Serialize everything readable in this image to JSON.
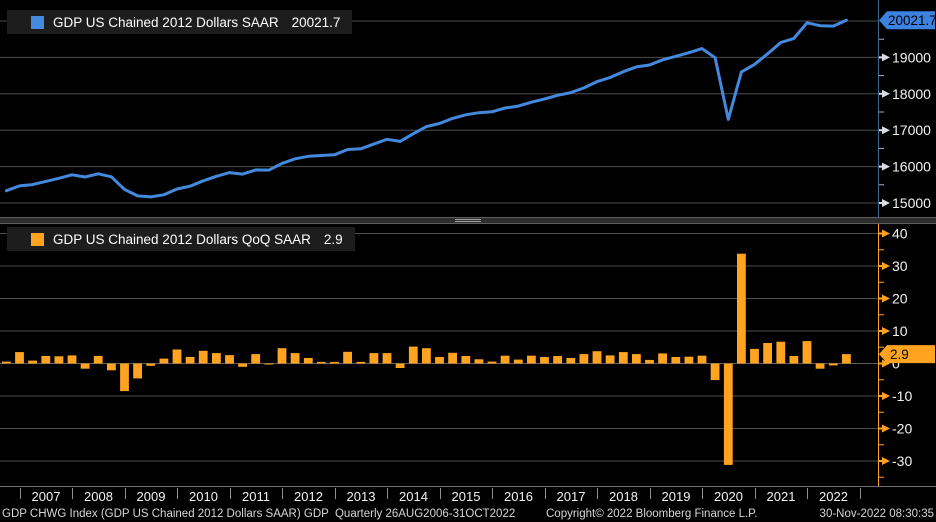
{
  "colors": {
    "background": "#000000",
    "blue": "#4389DE",
    "blue_tag": "#3C82E0",
    "orange": "#FFA320",
    "orange_tag": "#FFA320",
    "grid": "#4d4d4d",
    "zero_line": "#5c5c5c",
    "axis_line_top": "#3E6594",
    "axis_text": "#f2f2f2",
    "tag_text": "#000000"
  },
  "top_legend": {
    "swatch": "blue-square",
    "label": "GDP US Chained 2012 Dollars SAAR",
    "value": "20021.7"
  },
  "bottom_legend": {
    "swatch": "orange-square",
    "label": "GDP US Chained 2012 Dollars QoQ SAAR",
    "value": "2.9"
  },
  "x_axis": {
    "years": [
      "2007",
      "2008",
      "2009",
      "2010",
      "2011",
      "2012",
      "2013",
      "2014",
      "2015",
      "2016",
      "2017",
      "2018",
      "2019",
      "2020",
      "2021",
      "2022"
    ]
  },
  "footer": {
    "left": "GDP CHWG Index (GDP US Chained 2012 Dollars SAAR) GDP  Quarterly 26AUG2006-31OCT2022",
    "center": "Copyright© 2022 Bloomberg Finance L.P.",
    "right": "30-Nov-2022 08:30:35"
  },
  "chart_data": [
    {
      "type": "line",
      "title": "GDP US Chained 2012 Dollars SAAR",
      "frequency": "quarterly",
      "legend_position": "top-left",
      "grid": true,
      "ylim": [
        14750,
        20250
      ],
      "yticks": [
        15000,
        16000,
        17000,
        18000,
        19000,
        20000
      ],
      "last_value": "20021.7",
      "x": [
        "2006Q3",
        "2006Q4",
        "2007Q1",
        "2007Q2",
        "2007Q3",
        "2007Q4",
        "2008Q1",
        "2008Q2",
        "2008Q3",
        "2008Q4",
        "2009Q1",
        "2009Q2",
        "2009Q3",
        "2009Q4",
        "2010Q1",
        "2010Q2",
        "2010Q3",
        "2010Q4",
        "2011Q1",
        "2011Q2",
        "2011Q3",
        "2011Q4",
        "2012Q1",
        "2012Q2",
        "2012Q3",
        "2012Q4",
        "2013Q1",
        "2013Q2",
        "2013Q3",
        "2013Q4",
        "2014Q1",
        "2014Q2",
        "2014Q3",
        "2014Q4",
        "2015Q1",
        "2015Q2",
        "2015Q3",
        "2015Q4",
        "2016Q1",
        "2016Q2",
        "2016Q3",
        "2016Q4",
        "2017Q1",
        "2017Q2",
        "2017Q3",
        "2017Q4",
        "2018Q1",
        "2018Q2",
        "2018Q3",
        "2018Q4",
        "2019Q1",
        "2019Q2",
        "2019Q3",
        "2019Q4",
        "2020Q1",
        "2020Q2",
        "2020Q3",
        "2020Q4",
        "2021Q1",
        "2021Q2",
        "2021Q3",
        "2021Q4",
        "2022Q1",
        "2022Q2",
        "2022Q3"
      ],
      "values": [
        15338,
        15471,
        15506,
        15594,
        15679,
        15776,
        15713,
        15802,
        15719,
        15374,
        15194,
        15167,
        15224,
        15385,
        15461,
        15610,
        15733,
        15834,
        15795,
        15908,
        15904,
        16088,
        16215,
        16284,
        16304,
        16324,
        16469,
        16490,
        16620,
        16751,
        16692,
        16905,
        17100,
        17185,
        17325,
        17424,
        17480,
        17506,
        17611,
        17663,
        17768,
        17856,
        17958,
        18034,
        18163,
        18334,
        18447,
        18606,
        18740,
        18791,
        18935,
        19029,
        19128,
        19242,
        18992,
        17297,
        18603,
        18809,
        19098,
        19410,
        19521,
        19950,
        19870,
        19860,
        20021.7
      ]
    },
    {
      "type": "bar",
      "title": "GDP US Chained 2012 Dollars QoQ SAAR",
      "frequency": "quarterly",
      "legend_position": "top-left",
      "grid": true,
      "ylim": [
        -35,
        42
      ],
      "yticks": [
        40,
        30,
        20,
        10,
        0,
        -10,
        -20,
        -30
      ],
      "last_value": "2.9",
      "x": [
        "2006Q3",
        "2006Q4",
        "2007Q1",
        "2007Q2",
        "2007Q3",
        "2007Q4",
        "2008Q1",
        "2008Q2",
        "2008Q3",
        "2008Q4",
        "2009Q1",
        "2009Q2",
        "2009Q3",
        "2009Q4",
        "2010Q1",
        "2010Q2",
        "2010Q3",
        "2010Q4",
        "2011Q1",
        "2011Q2",
        "2011Q3",
        "2011Q4",
        "2012Q1",
        "2012Q2",
        "2012Q3",
        "2012Q4",
        "2013Q1",
        "2013Q2",
        "2013Q3",
        "2013Q4",
        "2014Q1",
        "2014Q2",
        "2014Q3",
        "2014Q4",
        "2015Q1",
        "2015Q2",
        "2015Q3",
        "2015Q4",
        "2016Q1",
        "2016Q2",
        "2016Q3",
        "2016Q4",
        "2017Q1",
        "2017Q2",
        "2017Q3",
        "2017Q4",
        "2018Q1",
        "2018Q2",
        "2018Q3",
        "2018Q4",
        "2019Q1",
        "2019Q2",
        "2019Q3",
        "2019Q4",
        "2020Q1",
        "2020Q2",
        "2020Q3",
        "2020Q4",
        "2021Q1",
        "2021Q2",
        "2021Q3",
        "2021Q4",
        "2022Q1",
        "2022Q2",
        "2022Q3"
      ],
      "values": [
        0.6,
        3.5,
        0.9,
        2.3,
        2.2,
        2.5,
        -1.6,
        2.3,
        -2.1,
        -8.5,
        -4.6,
        -0.7,
        1.5,
        4.3,
        2.0,
        3.9,
        3.2,
        2.6,
        -1.0,
        2.9,
        -0.1,
        4.7,
        3.2,
        1.7,
        0.5,
        0.5,
        3.6,
        0.5,
        3.2,
        3.2,
        -1.4,
        5.2,
        4.7,
        2.0,
        3.3,
        2.3,
        1.3,
        0.6,
        2.4,
        1.2,
        2.4,
        2.0,
        2.3,
        1.7,
        2.9,
        3.8,
        2.5,
        3.5,
        2.9,
        1.1,
        3.1,
        2.0,
        2.1,
        2.4,
        -5.1,
        -31.2,
        33.8,
        4.5,
        6.3,
        6.7,
        2.3,
        6.9,
        -1.6,
        -0.6,
        2.9
      ]
    }
  ]
}
